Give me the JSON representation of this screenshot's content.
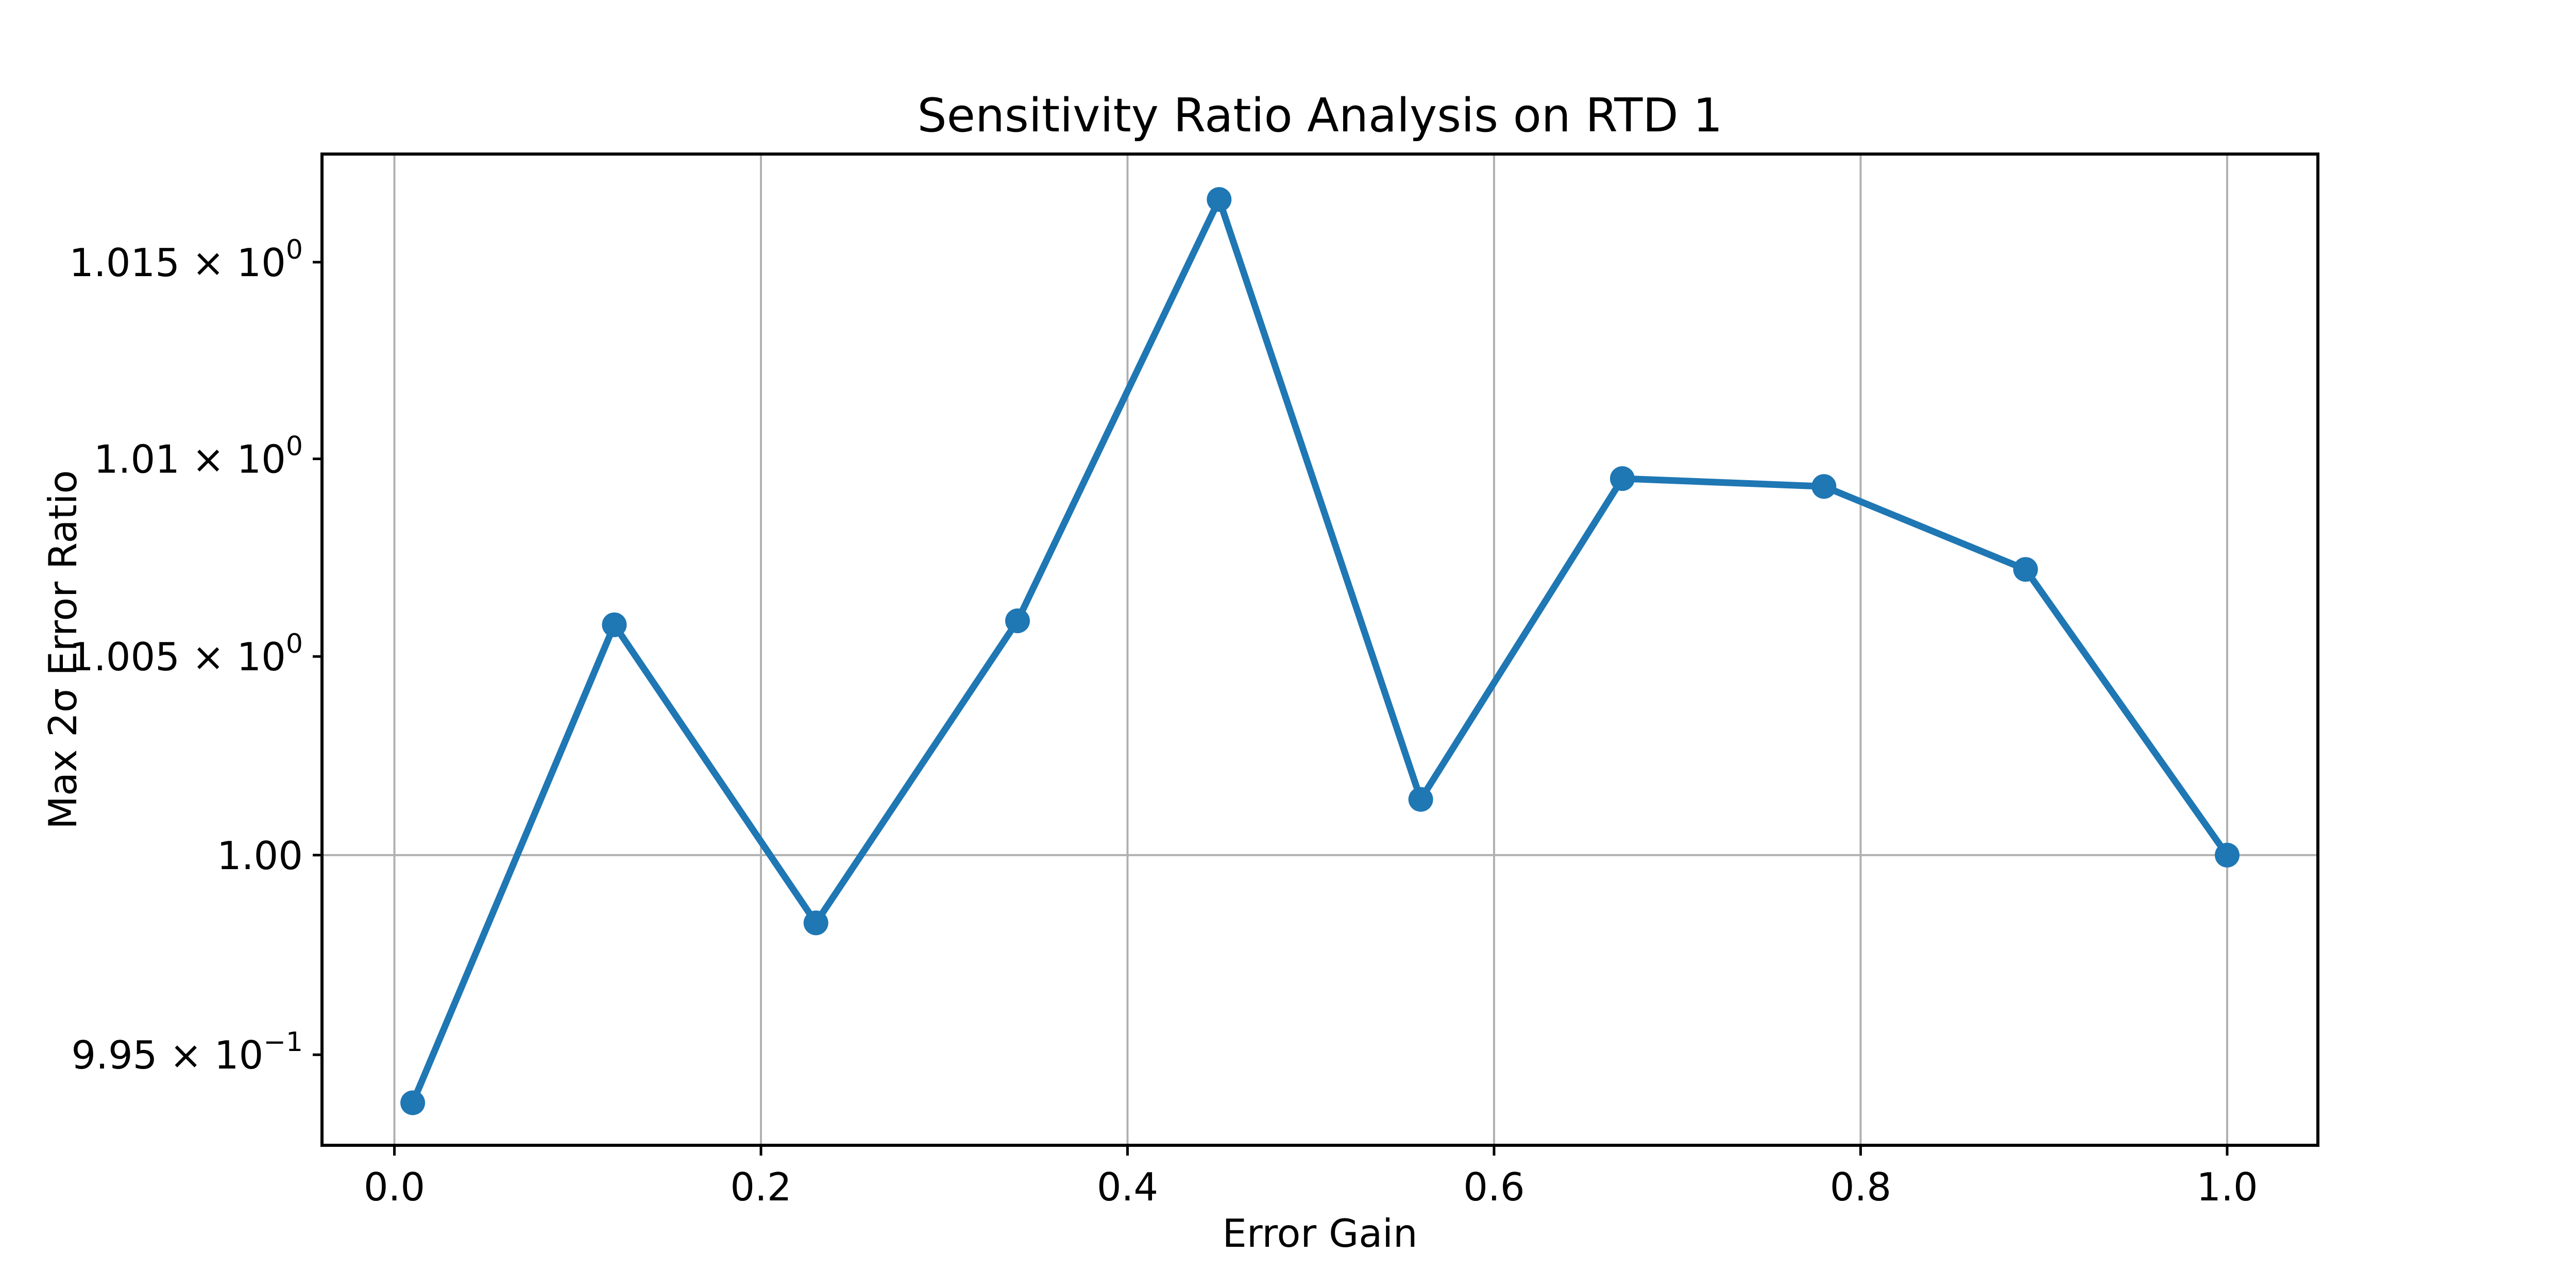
{
  "figure": {
    "background": "#ffffff",
    "text_color": "#000000"
  },
  "chart_data": {
    "type": "line",
    "title": "Sensitivity Ratio Analysis on RTD 1",
    "xlabel": "Error Gain",
    "ylabel": "Max 2σ Error Ratio",
    "x": [
      0.01,
      0.12,
      0.23,
      0.34,
      0.45,
      0.56,
      0.67,
      0.78,
      0.89,
      1.0
    ],
    "y": [
      0.9938,
      1.0058,
      0.9983,
      1.0059,
      1.0166,
      1.0014,
      1.0095,
      1.0093,
      1.0072,
      1.0
    ],
    "yscale": "log",
    "xlim": [
      -0.0395,
      1.0495
    ],
    "ylim": [
      0.99274,
      1.01776
    ],
    "line_color": "#1f77b4",
    "marker": "circle",
    "marker_color": "#1f77b4",
    "grid_color": "#b0b0b0",
    "spine_color": "#000000",
    "legend": null,
    "xticks": {
      "values": [
        0.0,
        0.2,
        0.4,
        0.6,
        0.8,
        1.0
      ],
      "labels": [
        "0.0",
        "0.2",
        "0.4",
        "0.6",
        "0.8",
        "1.0"
      ],
      "gridlines": true
    },
    "yticks": [
      {
        "value": 1.015,
        "base": "1.015 × 10",
        "exp": "0",
        "gridline": false
      },
      {
        "value": 1.01,
        "base": "1.01 × 10",
        "exp": "0",
        "gridline": false
      },
      {
        "value": 1.005,
        "base": "1.005 × 10",
        "exp": "0",
        "gridline": false
      },
      {
        "value": 1.0,
        "base": "1.00",
        "exp": "",
        "gridline": true
      },
      {
        "value": 0.995,
        "base": "9.95 × 10",
        "exp": "−1",
        "gridline": false
      }
    ]
  }
}
